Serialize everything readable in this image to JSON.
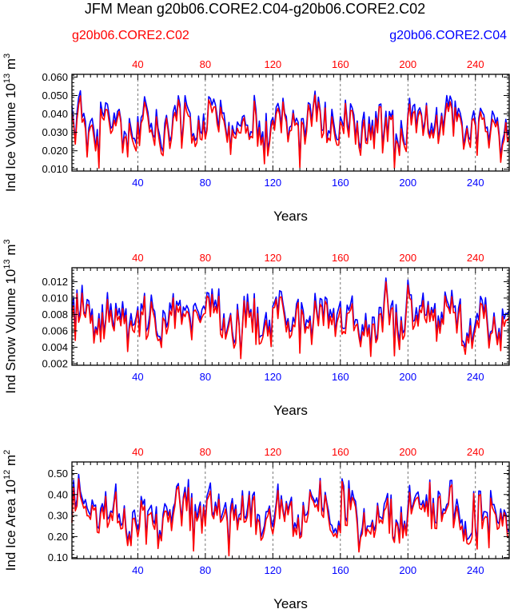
{
  "title": "JFM Mean g20b06.CORE2.C04-g20b06.CORE2.C02",
  "legend": {
    "left": {
      "label": "g20b06.CORE2.C02",
      "color": "#ff0000"
    },
    "right": {
      "label": "g20b06.CORE2.C04",
      "color": "#0000ff"
    }
  },
  "colors": {
    "red": "#ff0000",
    "blue": "#0000ff"
  },
  "chart_data": [
    {
      "type": "line",
      "id": "ice-volume",
      "ylabel_main": "Ind Ice Volume 10",
      "ylabel_exp": "13",
      "ylabel_unit": " m",
      "ylabel_unit_exp": "3",
      "xlabel": "Years",
      "xlim": [
        1,
        260
      ],
      "ylim": [
        0.009,
        0.0615
      ],
      "yticks": [
        0.01,
        0.02,
        0.03,
        0.04,
        0.05,
        0.06
      ],
      "ytick_labels": [
        "0.010",
        "0.020",
        "0.030",
        "0.040",
        "0.050",
        "0.060"
      ],
      "xticks": [
        40,
        80,
        120,
        160,
        200,
        240
      ],
      "xtick_labels_top": [
        "40",
        "80",
        "120",
        "160",
        "200",
        "240"
      ],
      "xtick_labels_bottom": [
        "40",
        "80",
        "120",
        "160",
        "200",
        "240"
      ],
      "series": [
        {
          "name": "g20b06.CORE2.C02",
          "color": "#ff0000"
        },
        {
          "name": "g20b06.CORE2.C04",
          "color": "#0000ff"
        }
      ]
    },
    {
      "type": "line",
      "id": "snow-volume",
      "ylabel_main": "Ind Snow Volume 10",
      "ylabel_exp": "13",
      "ylabel_unit": " m",
      "ylabel_unit_exp": "3",
      "xlabel": "Years",
      "xlim": [
        1,
        260
      ],
      "ylim": [
        0.0018,
        0.0137
      ],
      "yticks": [
        0.002,
        0.004,
        0.006,
        0.008,
        0.01,
        0.012
      ],
      "ytick_labels": [
        "0.002",
        "0.004",
        "0.006",
        "0.008",
        "0.010",
        "0.012"
      ],
      "xticks": [
        40,
        80,
        120,
        160,
        200,
        240
      ],
      "xtick_labels_top": [
        "40",
        "80",
        "120",
        "160",
        "200",
        "240"
      ],
      "xtick_labels_bottom": [
        "40",
        "80",
        "120",
        "160",
        "200",
        "240"
      ],
      "series": [
        {
          "name": "g20b06.CORE2.C02",
          "color": "#ff0000"
        },
        {
          "name": "g20b06.CORE2.C04",
          "color": "#0000ff"
        }
      ]
    },
    {
      "type": "line",
      "id": "ice-area",
      "ylabel_main": "Ind Ice Area 10",
      "ylabel_exp": "12",
      "ylabel_unit": " m",
      "ylabel_unit_exp": "2",
      "xlabel": "Years",
      "xlim": [
        1,
        260
      ],
      "ylim": [
        0.095,
        0.555
      ],
      "yticks": [
        0.1,
        0.2,
        0.3,
        0.4,
        0.5
      ],
      "ytick_labels": [
        "0.10",
        "0.20",
        "0.30",
        "0.40",
        "0.50"
      ],
      "xticks": [
        40,
        80,
        120,
        160,
        200,
        240
      ],
      "xtick_labels_top": [
        "40",
        "80",
        "120",
        "160",
        "200",
        "240"
      ],
      "xtick_labels_bottom": [
        "40",
        "80",
        "120",
        "160",
        "200",
        "240"
      ],
      "series": [
        {
          "name": "g20b06.CORE2.C02",
          "color": "#ff0000"
        },
        {
          "name": "g20b06.CORE2.C04",
          "color": "#0000ff"
        }
      ]
    }
  ]
}
